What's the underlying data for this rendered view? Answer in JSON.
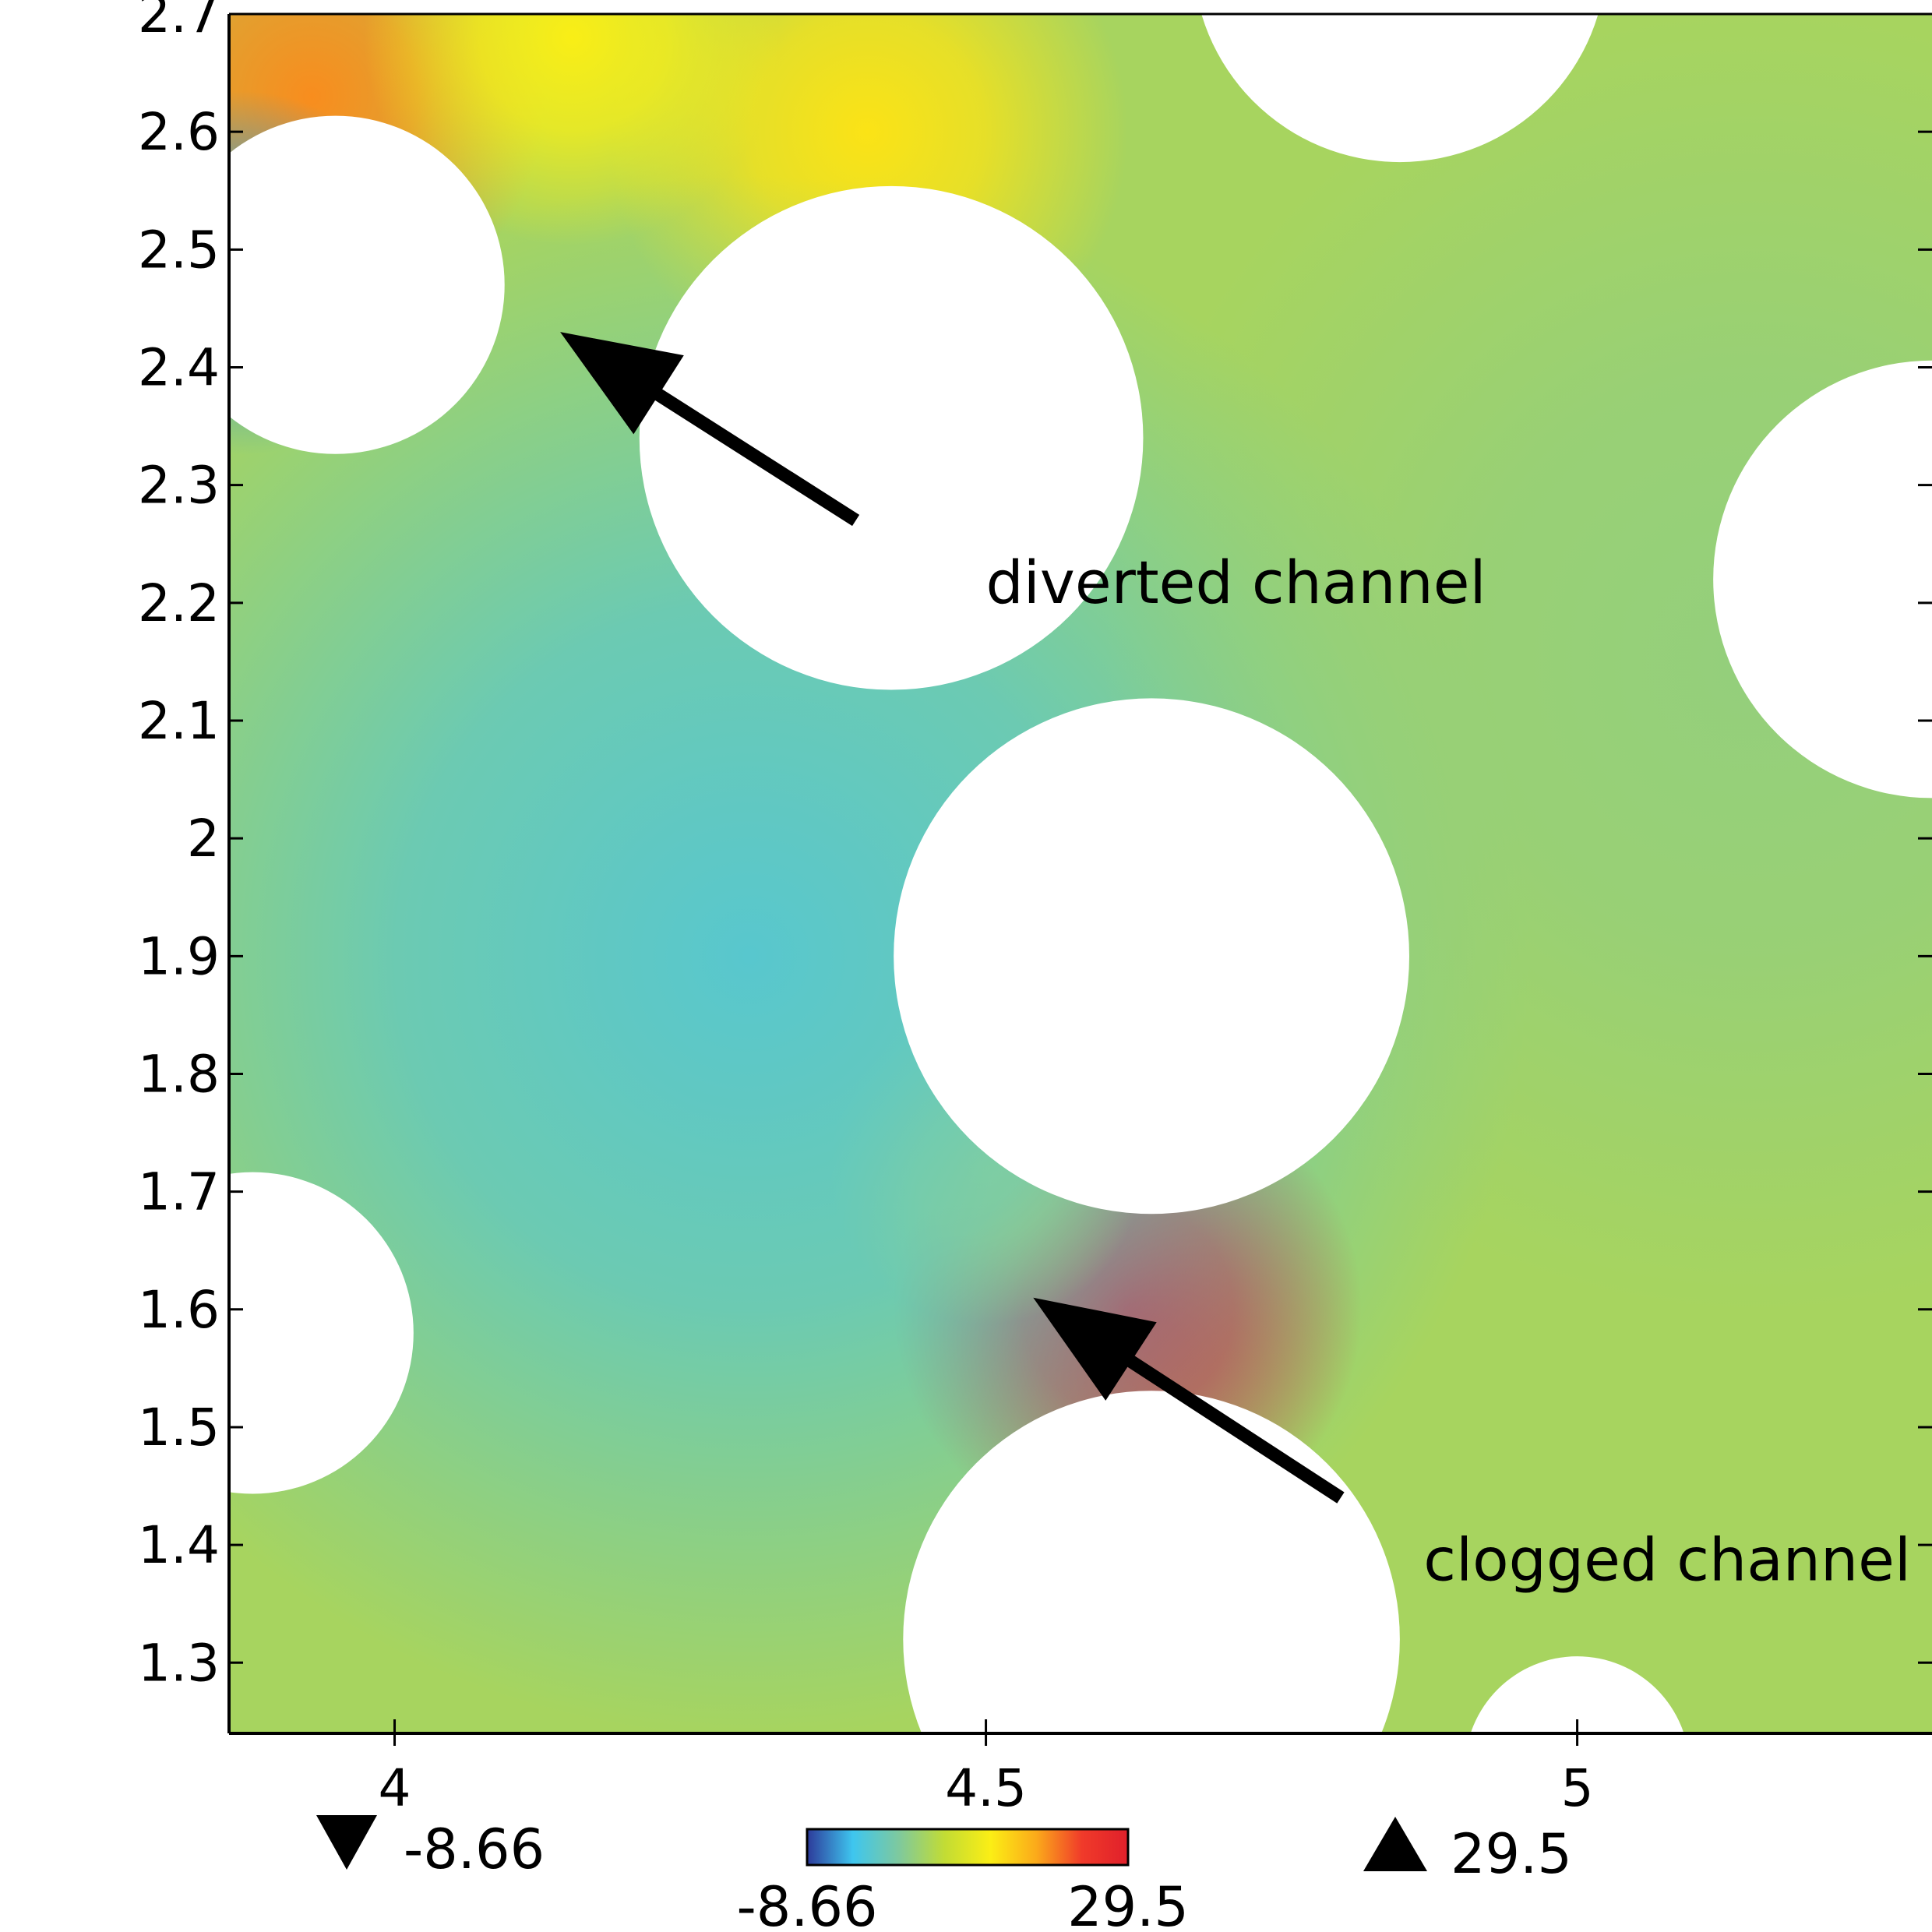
{
  "chart_data": {
    "type": "heatmap",
    "title": "",
    "xlabel": "",
    "ylabel": "",
    "xlim": [
      3.86,
      5.3
    ],
    "ylim": [
      1.24,
      2.7
    ],
    "x_ticks": [
      {
        "value": 4,
        "label": "4"
      },
      {
        "value": 4.5,
        "label": "4.5"
      },
      {
        "value": 5,
        "label": "5"
      }
    ],
    "y_ticks": [
      {
        "value": 1.3,
        "label": "1.3"
      },
      {
        "value": 1.4,
        "label": "1.4"
      },
      {
        "value": 1.5,
        "label": "1.5"
      },
      {
        "value": 1.6,
        "label": "1.6"
      },
      {
        "value": 1.7,
        "label": "1.7"
      },
      {
        "value": 1.8,
        "label": "1.8"
      },
      {
        "value": 1.9,
        "label": "1.9"
      },
      {
        "value": 2,
        "label": "2"
      },
      {
        "value": 2.1,
        "label": "2.1"
      },
      {
        "value": 2.2,
        "label": "2.2"
      },
      {
        "value": 2.3,
        "label": "2.3"
      },
      {
        "value": 2.4,
        "label": "2.4"
      },
      {
        "value": 2.5,
        "label": "2.5"
      },
      {
        "value": 2.6,
        "label": "2.6"
      },
      {
        "value": 2.7,
        "label": "2.7"
      }
    ],
    "colorbar": {
      "min": -8.66,
      "max": 29.5,
      "min_label": "-8.66",
      "max_label": "29.5",
      "colors": [
        "#2d3a9a",
        "#3ec6ef",
        "#7ec99e",
        "#c2dc34",
        "#fbee15",
        "#fbaa1a",
        "#f03a2a",
        "#e0202b"
      ]
    },
    "min_marker_label": "-8.66",
    "max_marker_label": "29.5",
    "background_level": 5.5,
    "obstacles": [
      {
        "x": 3.95,
        "y": 2.47,
        "r": 0.143
      },
      {
        "x": 4.42,
        "y": 2.34,
        "r": 0.213
      },
      {
        "x": 4.85,
        "y": 2.75,
        "r": 0.175
      },
      {
        "x": 5.3,
        "y": 2.22,
        "r": 0.185
      },
      {
        "x": 4.64,
        "y": 1.9,
        "r": 0.218
      },
      {
        "x": 3.88,
        "y": 1.58,
        "r": 0.136
      },
      {
        "x": 4.64,
        "y": 1.32,
        "r": 0.21
      },
      {
        "x": 5.0,
        "y": 1.21,
        "r": 0.095
      }
    ],
    "field_features": [
      {
        "x": 4.62,
        "y": 1.6,
        "level": 29.5,
        "spread": 0.09
      },
      {
        "x": 4.5,
        "y": 1.72,
        "level": 14,
        "spread": 0.06
      },
      {
        "x": 3.93,
        "y": 2.63,
        "level": 20,
        "spread": 0.09
      },
      {
        "x": 4.4,
        "y": 2.6,
        "level": 14,
        "spread": 0.1
      },
      {
        "x": 4.15,
        "y": 2.68,
        "level": 13,
        "spread": 0.08
      },
      {
        "x": 3.87,
        "y": 2.48,
        "level": -5,
        "spread": 0.07
      },
      {
        "x": 4.3,
        "y": 1.9,
        "level": -1,
        "spread": 0.3
      },
      {
        "x": 5.15,
        "y": 2.15,
        "level": 4,
        "spread": 0.25
      }
    ],
    "annotations": [
      {
        "text": "diverted channel",
        "tip_x": 4.14,
        "tip_y": 2.43,
        "tail_x": 4.39,
        "tail_y": 2.27,
        "text_x": 4.5,
        "text_y": 2.2
      },
      {
        "text": "clogged channel",
        "tip_x": 4.54,
        "tip_y": 1.61,
        "tail_x": 4.8,
        "tail_y": 1.44,
        "text_x": 4.87,
        "text_y": 1.37
      }
    ]
  }
}
